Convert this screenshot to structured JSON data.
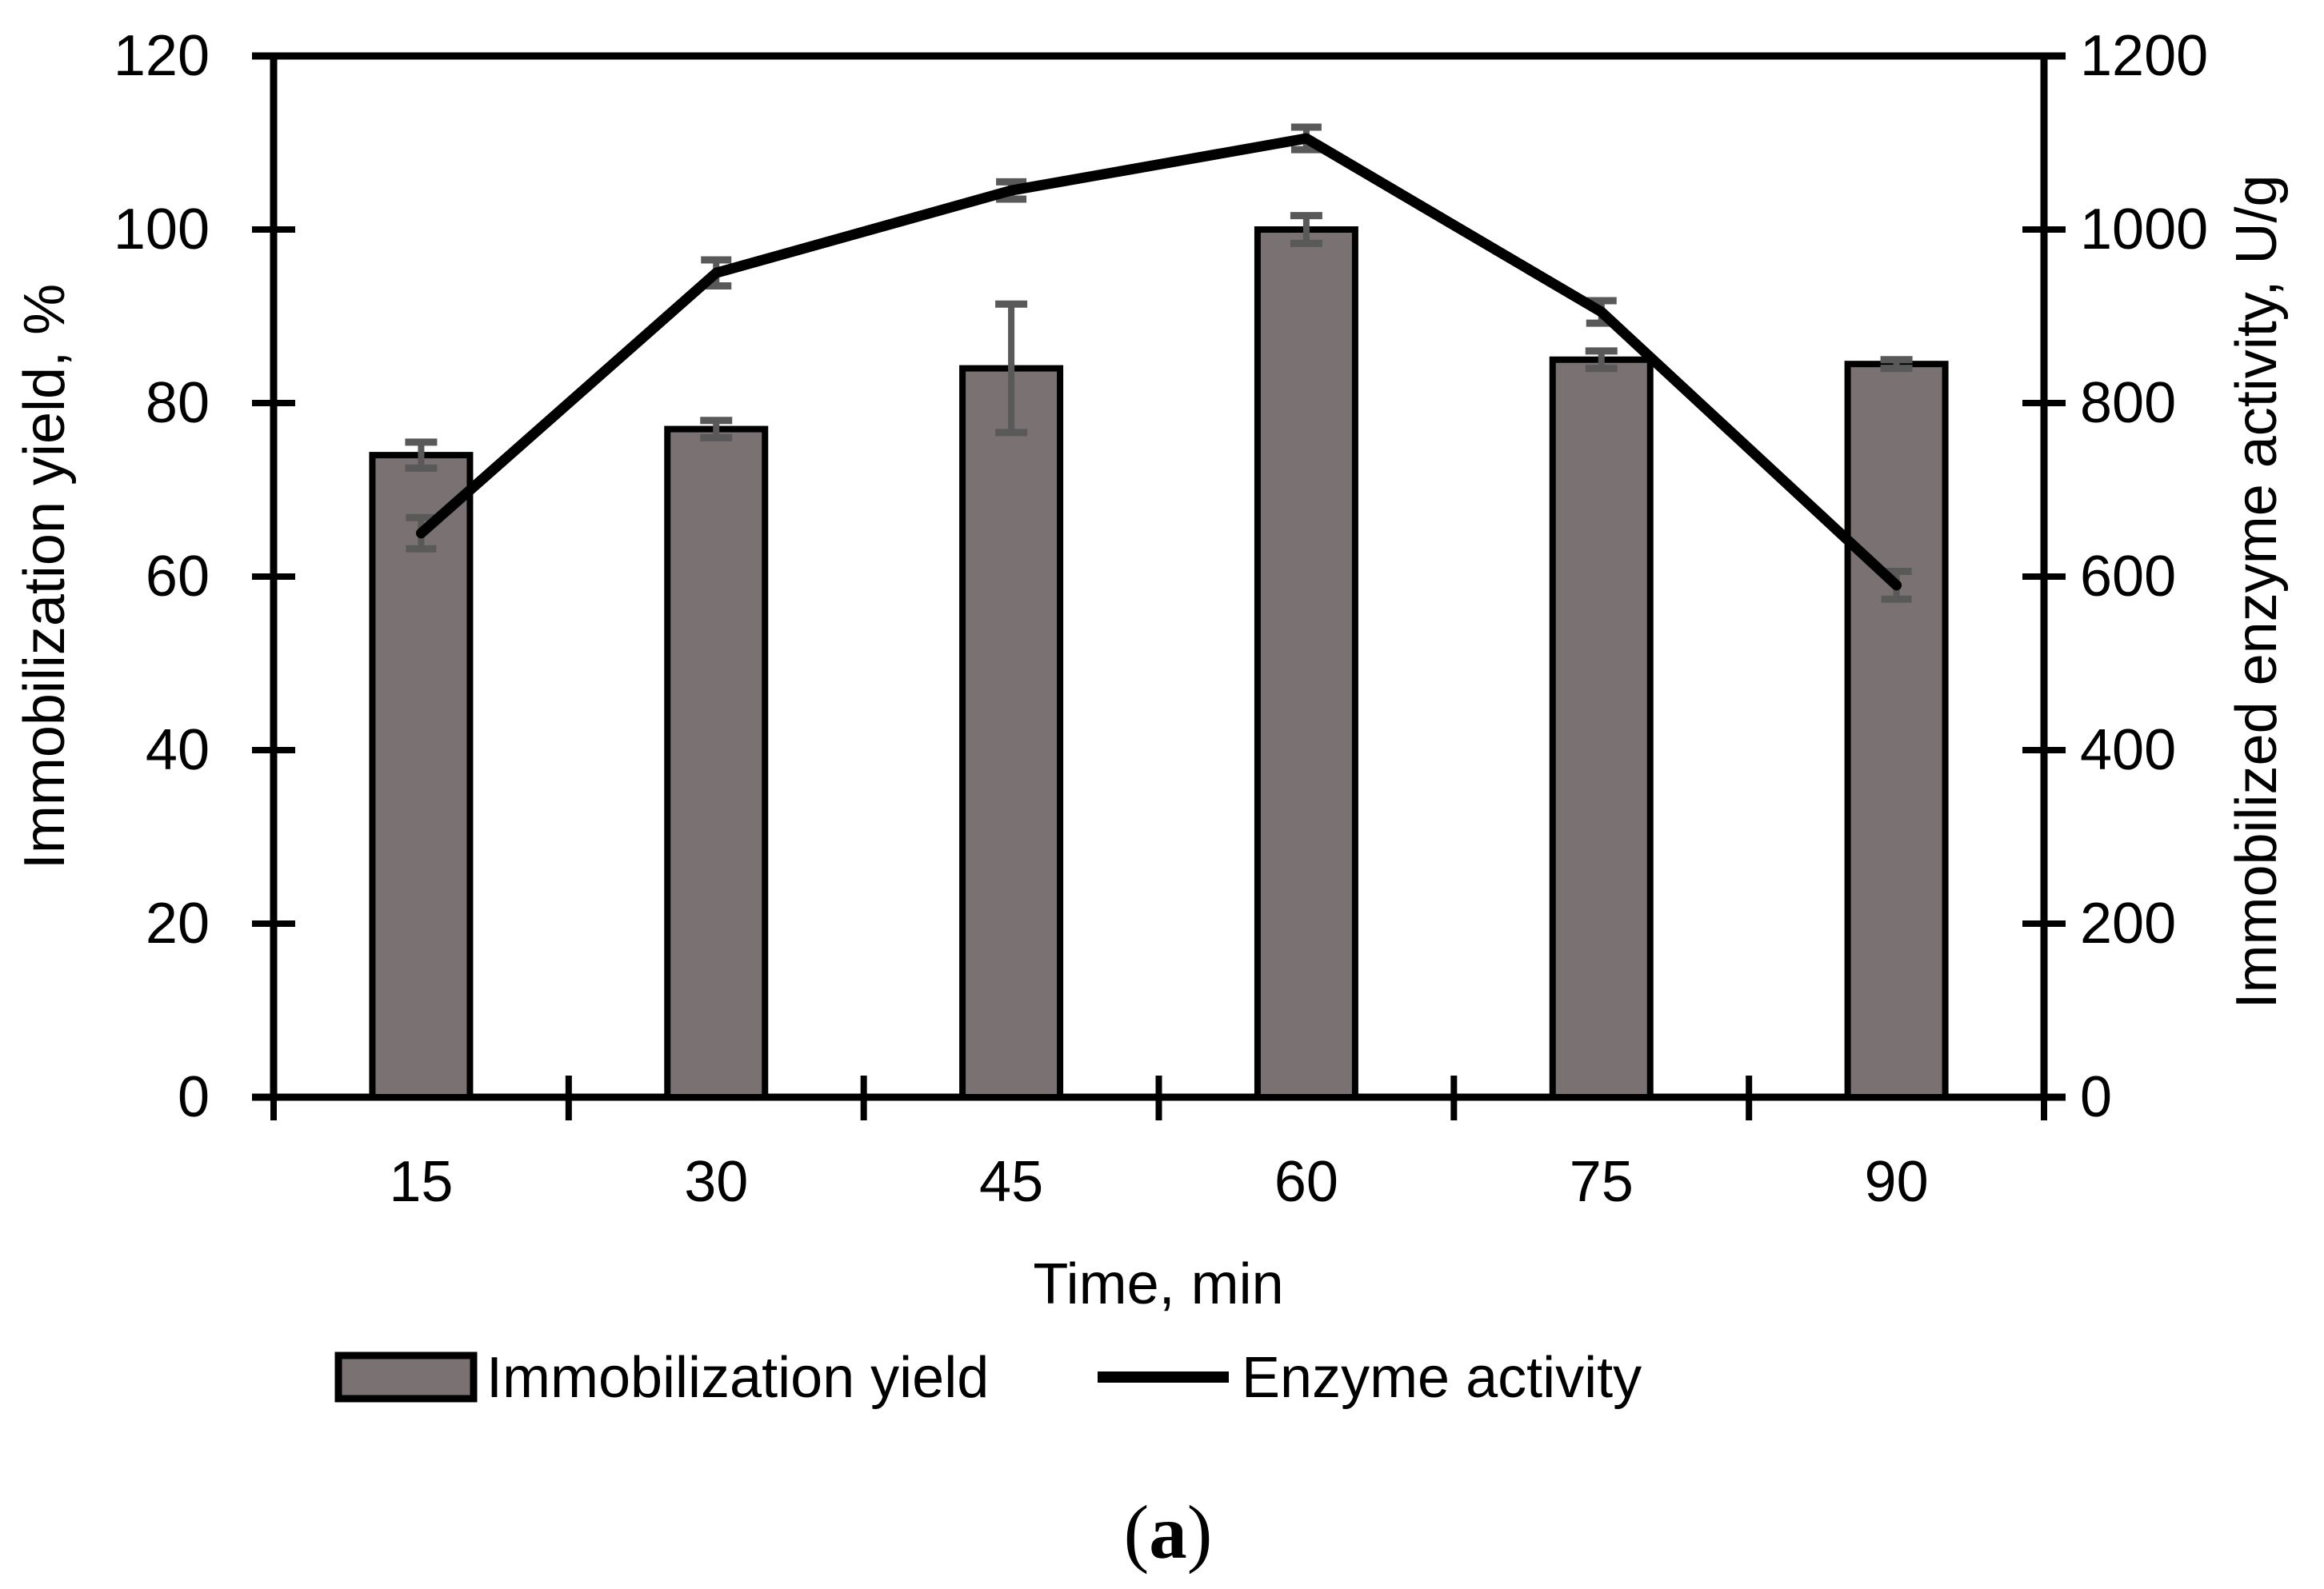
{
  "figure": {
    "caption_open": "(",
    "caption_letter": "a",
    "caption_close": ")"
  },
  "chart_data": {
    "type": "bar+line",
    "categories": [
      15,
      30,
      45,
      60,
      75,
      90
    ],
    "x_tick_labels": [
      "15",
      "30",
      "45",
      "60",
      "75",
      "90"
    ],
    "xlabel": "Time, min",
    "left_axis": {
      "label": "Immobilization yield, %",
      "lim": [
        0,
        120
      ],
      "ticks": [
        0,
        20,
        40,
        60,
        80,
        100,
        120
      ],
      "tick_labels": [
        "0",
        "20",
        "40",
        "60",
        "80",
        "100",
        "120"
      ]
    },
    "right_axis": {
      "label": "Immobilized enzyme activity, U/g",
      "lim": [
        0,
        1200
      ],
      "ticks": [
        0,
        200,
        400,
        600,
        800,
        1000,
        1200
      ],
      "tick_labels": [
        "0",
        "200",
        "400",
        "600",
        "800",
        "1000",
        "1200"
      ]
    },
    "series": [
      {
        "name": "Immobilization yield",
        "type": "bar",
        "axis": "left",
        "values": [
          74,
          77,
          84,
          100,
          85,
          84.5
        ],
        "errors": [
          1.5,
          1,
          7.4,
          1.6,
          1,
          0.5
        ]
      },
      {
        "name": "Enzyme activity",
        "type": "line",
        "axis": "right",
        "values": [
          650,
          950,
          1045,
          1105,
          905,
          590
        ],
        "errors": [
          18,
          15,
          10,
          13,
          13,
          16
        ]
      }
    ],
    "legend": [
      {
        "label": "Immobilization yield"
      },
      {
        "label": "Enzyme activity"
      }
    ],
    "grid": false,
    "legend_position": "bottom",
    "colors": {
      "bar_fill": "#7a7272",
      "bar_border": "#000000",
      "line": "#000000",
      "error_bar": "#595959",
      "axis": "#000000"
    }
  }
}
